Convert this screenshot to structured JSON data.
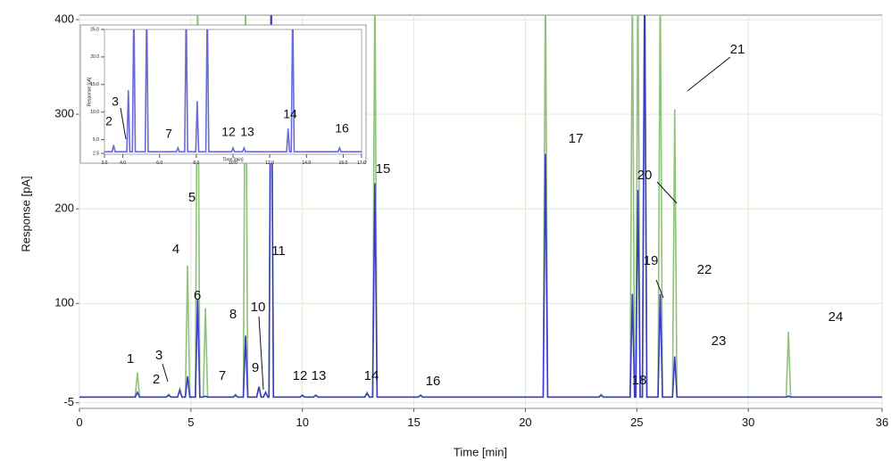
{
  "chart_data": [
    {
      "type": "line",
      "x_label": "Time [min]",
      "y_label": "Response [pA]",
      "xlim": [
        0,
        36
      ],
      "xticks": [
        0,
        5,
        10,
        15,
        20,
        25,
        30,
        36
      ],
      "ylim": [
        -10,
        400
      ],
      "yticks": [
        -5,
        100,
        200,
        300,
        400
      ],
      "grid": true,
      "x": [
        0,
        2.5,
        2.6,
        2.7,
        3.9,
        4.0,
        4.1,
        4.4,
        4.5,
        4.6,
        4.75,
        4.85,
        4.95,
        5.2,
        5.3,
        5.4,
        5.55,
        5.65,
        5.75,
        6.9,
        7.0,
        7.1,
        7.35,
        7.45,
        7.55,
        7.95,
        8.05,
        8.15,
        8.25,
        8.35,
        8.45,
        8.5,
        8.6,
        8.7,
        9.9,
        10.0,
        10.1,
        10.5,
        10.6,
        10.7,
        12.8,
        12.9,
        13.0,
        13.15,
        13.25,
        13.35,
        15.2,
        15.3,
        15.4,
        20.8,
        20.9,
        21.0,
        23.3,
        23.4,
        23.5,
        24.7,
        24.8,
        24.9,
        24.95,
        25.05,
        25.15,
        25.25,
        25.35,
        25.45,
        25.95,
        26.05,
        26.15,
        26.6,
        26.7,
        26.8,
        31.7,
        31.8,
        31.9,
        36
      ],
      "series": [
        {
          "color": "#8fc27a",
          "values": [
            1,
            1,
            27,
            1,
            1,
            4,
            1,
            1,
            10,
            1,
            1,
            140,
            1,
            1,
            450,
            1,
            1,
            95,
            1,
            1,
            4,
            1,
            1,
            450,
            1,
            1,
            12,
            1,
            1,
            6,
            1,
            1,
            450,
            1,
            1,
            3,
            1,
            1,
            3,
            1,
            1,
            6,
            1,
            1,
            450,
            1,
            1,
            3,
            1,
            1,
            450,
            1,
            1,
            4,
            1,
            1,
            450,
            1,
            1,
            450,
            1,
            1,
            450,
            1,
            1,
            450,
            1,
            1,
            305,
            1,
            1,
            70,
            1,
            1
          ]
        },
        {
          "color": "#3b3bc8",
          "values": [
            1,
            1,
            6,
            1,
            1,
            3,
            1,
            1,
            8,
            1,
            1,
            23,
            1,
            1,
            105,
            1,
            1,
            2,
            1,
            1,
            3,
            1,
            1,
            66,
            1,
            1,
            12,
            1,
            1,
            6,
            1,
            1,
            450,
            1,
            1,
            3,
            1,
            1,
            3,
            1,
            1,
            5,
            1,
            1,
            227,
            1,
            1,
            3,
            1,
            1,
            258,
            1,
            1,
            3,
            1,
            1,
            110,
            1,
            1,
            220,
            1,
            1,
            450,
            1,
            1,
            110,
            1,
            1,
            44,
            1,
            1,
            2,
            1,
            1
          ]
        }
      ],
      "annotations": [
        "1",
        "2",
        "3",
        "4",
        "5",
        "6",
        "7",
        "8",
        "9",
        "10",
        "11",
        "12",
        "13",
        "14",
        "15",
        "16",
        "17",
        "18",
        "19",
        "20",
        "21",
        "22",
        "23",
        "24"
      ]
    },
    {
      "type": "line",
      "x_label": "Time [min]",
      "y_label": "Response [pA]",
      "xlim": [
        3,
        17
      ],
      "xticks": [
        {
          "value": 3,
          "label": "3.0"
        },
        {
          "value": 4,
          "label": "4.0"
        },
        {
          "value": 6,
          "label": "6.0"
        },
        {
          "value": 8,
          "label": "8.0"
        },
        {
          "value": 10,
          "label": "10.0"
        },
        {
          "value": 12,
          "label": "12.0"
        },
        {
          "value": 14,
          "label": "14.0"
        },
        {
          "value": 16,
          "label": "16.0"
        },
        {
          "value": 17,
          "label": "17.0"
        }
      ],
      "ylim": [
        2.5,
        25
      ],
      "yticks": [
        {
          "value": 2.5,
          "label": "2.5"
        },
        {
          "value": 5,
          "label": "5.0"
        },
        {
          "value": 10,
          "label": "10.0"
        },
        {
          "value": 15,
          "label": "15.0"
        },
        {
          "value": 20,
          "label": "20.0"
        },
        {
          "value": 25,
          "label": "25.0"
        }
      ],
      "grid": false,
      "x": [
        3,
        3.42,
        3.5,
        3.58,
        4.22,
        4.3,
        4.38,
        4.52,
        4.6,
        4.68,
        5.22,
        5.3,
        5.38,
        6.92,
        7.0,
        7.08,
        7.37,
        7.45,
        7.53,
        7.97,
        8.05,
        8.13,
        8.52,
        8.6,
        8.68,
        9.92,
        10.0,
        10.08,
        10.52,
        10.6,
        10.68,
        12.92,
        13.0,
        13.08,
        13.17,
        13.25,
        13.33,
        15.72,
        15.8,
        15.88,
        17
      ],
      "series": [
        {
          "color": "#6a6ad8",
          "values": [
            2.8,
            2.8,
            4,
            2.8,
            2.8,
            14,
            2.8,
            2.8,
            30,
            2.8,
            2.8,
            30,
            2.8,
            2.8,
            3.5,
            2.8,
            2.8,
            30,
            2.8,
            2.8,
            12,
            2.8,
            2.8,
            30,
            2.8,
            2.8,
            3.5,
            2.8,
            2.8,
            3.5,
            2.8,
            2.8,
            7,
            2.8,
            2.8,
            30,
            2.8,
            2.8,
            3.5,
            2.8,
            2.8
          ]
        }
      ],
      "annotations": [
        "2",
        "3",
        "7",
        "12",
        "13",
        "14",
        "16"
      ]
    }
  ]
}
